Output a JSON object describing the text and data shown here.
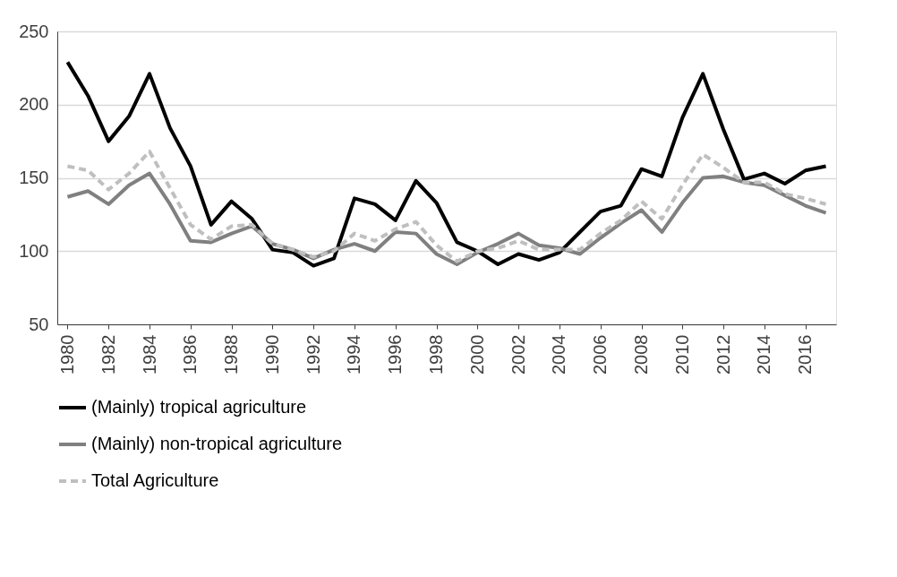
{
  "chart_data": {
    "type": "line",
    "x": [
      1980,
      1981,
      1982,
      1983,
      1984,
      1985,
      1986,
      1987,
      1988,
      1989,
      1990,
      1991,
      1992,
      1993,
      1994,
      1995,
      1996,
      1997,
      1998,
      1999,
      2000,
      2001,
      2002,
      2003,
      2004,
      2005,
      2006,
      2007,
      2008,
      2009,
      2010,
      2011,
      2012,
      2013,
      2014,
      2015,
      2016,
      2017
    ],
    "series": [
      {
        "name": "(Mainly) tropical agriculture",
        "color": "#000000",
        "line_style": "solid",
        "values": [
          229,
          206,
          175,
          192,
          221,
          184,
          158,
          118,
          134,
          122,
          101,
          99,
          90,
          95,
          136,
          132,
          121,
          148,
          133,
          106,
          100,
          91,
          98,
          94,
          99,
          113,
          127,
          131,
          156,
          151,
          191,
          221,
          183,
          149,
          153,
          146,
          155,
          158
        ]
      },
      {
        "name": "(Mainly) non-tropical agriculture",
        "color": "#808080",
        "line_style": "solid",
        "values": [
          137,
          141,
          132,
          145,
          153,
          132,
          107,
          106,
          112,
          117,
          105,
          101,
          95,
          101,
          105,
          100,
          113,
          112,
          98,
          91,
          99,
          105,
          112,
          104,
          102,
          98,
          109,
          119,
          128,
          113,
          133,
          150,
          151,
          147,
          145,
          138,
          131,
          126
        ]
      },
      {
        "name": "Total Agriculture",
        "color": "#bfbfbf",
        "line_style": "dashed",
        "values": [
          158,
          155,
          142,
          153,
          168,
          143,
          118,
          108,
          117,
          118,
          105,
          101,
          96,
          100,
          112,
          107,
          115,
          120,
          104,
          93,
          100,
          102,
          107,
          101,
          101,
          101,
          112,
          121,
          134,
          122,
          145,
          166,
          157,
          147,
          147,
          139,
          136,
          132
        ]
      }
    ],
    "xlim": [
      1979.5,
      2017.5
    ],
    "xticks": [
      1980,
      1982,
      1984,
      1986,
      1988,
      1990,
      1992,
      1994,
      1996,
      1998,
      2000,
      2002,
      2004,
      2006,
      2008,
      2010,
      2012,
      2014,
      2016
    ],
    "ylim": [
      50,
      250
    ],
    "yticks": [
      50,
      100,
      150,
      200,
      250
    ],
    "grid": "y",
    "legend": "bottom",
    "marker": "none"
  }
}
